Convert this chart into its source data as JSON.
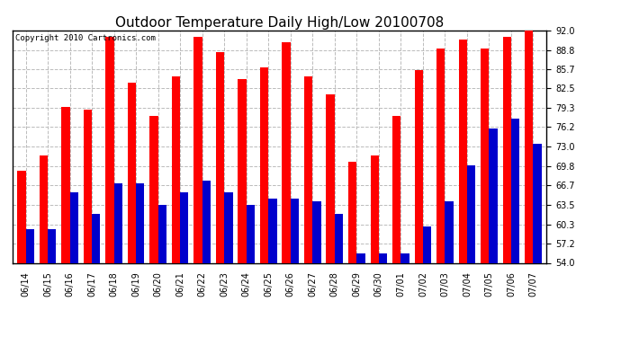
{
  "title": "Outdoor Temperature Daily High/Low 20100708",
  "copyright": "Copyright 2010 Cartronics.com",
  "dates": [
    "06/14",
    "06/15",
    "06/16",
    "06/17",
    "06/18",
    "06/19",
    "06/20",
    "06/21",
    "06/22",
    "06/23",
    "06/24",
    "06/25",
    "06/26",
    "06/27",
    "06/28",
    "06/29",
    "06/30",
    "07/01",
    "07/02",
    "07/03",
    "07/04",
    "07/05",
    "07/06",
    "07/07"
  ],
  "highs": [
    69.0,
    71.5,
    79.5,
    79.0,
    91.0,
    83.5,
    78.0,
    84.5,
    91.0,
    88.5,
    84.0,
    86.0,
    90.0,
    84.5,
    81.5,
    70.5,
    71.5,
    78.0,
    85.5,
    89.0,
    90.5,
    89.0,
    91.0,
    92.0
  ],
  "lows": [
    59.5,
    59.5,
    65.5,
    62.0,
    67.0,
    67.0,
    63.5,
    65.5,
    67.5,
    65.5,
    63.5,
    64.5,
    64.5,
    64.0,
    62.0,
    55.5,
    55.5,
    55.5,
    60.0,
    64.0,
    70.0,
    76.0,
    77.5,
    73.5
  ],
  "high_color": "#FF0000",
  "low_color": "#0000CC",
  "ylim_min": 54.0,
  "ylim_max": 92.0,
  "yticks": [
    54.0,
    57.2,
    60.3,
    63.5,
    66.7,
    69.8,
    73.0,
    76.2,
    79.3,
    82.5,
    85.7,
    88.8,
    92.0
  ],
  "bg_color": "#ffffff",
  "plot_bg": "#ffffff",
  "grid_color": "#bbbbbb",
  "bar_width": 0.38,
  "title_fontsize": 11,
  "copyright_fontsize": 6.5
}
